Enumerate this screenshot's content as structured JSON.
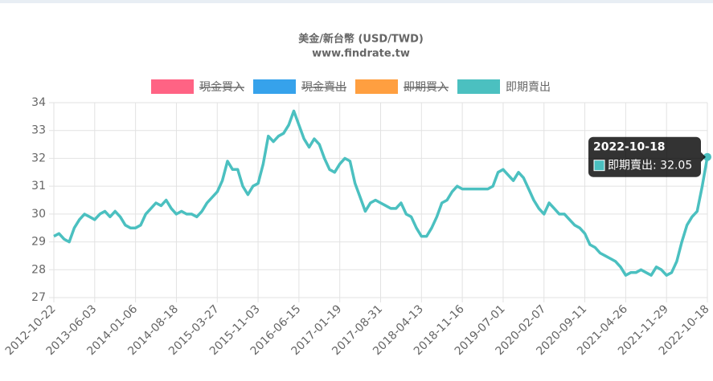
{
  "chart_data": {
    "type": "line",
    "title": [
      "美金/新台幣 (USD/TWD)",
      "www.findrate.tw"
    ],
    "categories": [
      "2012-10-22",
      null,
      null,
      null,
      null,
      null,
      null,
      null,
      "2013-06-03",
      null,
      null,
      null,
      null,
      null,
      null,
      null,
      "2014-01-06",
      null,
      null,
      null,
      null,
      null,
      null,
      null,
      "2014-08-18",
      null,
      null,
      null,
      null,
      null,
      null,
      null,
      "2015-03-27",
      null,
      null,
      null,
      null,
      null,
      null,
      null,
      "2015-11-03",
      null,
      null,
      null,
      null,
      null,
      null,
      null,
      "2016-06-15",
      null,
      null,
      null,
      null,
      null,
      null,
      null,
      "2017-01-19",
      null,
      null,
      null,
      null,
      null,
      null,
      null,
      "2017-08-31",
      null,
      null,
      null,
      null,
      null,
      null,
      null,
      "2018-04-13",
      null,
      null,
      null,
      null,
      null,
      null,
      null,
      "2018-11-16",
      null,
      null,
      null,
      null,
      null,
      null,
      null,
      "2019-07-01",
      null,
      null,
      null,
      null,
      null,
      null,
      null,
      "2020-02-07",
      null,
      null,
      null,
      null,
      null,
      null,
      null,
      "2020-09-11",
      null,
      null,
      null,
      null,
      null,
      null,
      null,
      "2021-04-26",
      null,
      null,
      null,
      null,
      null,
      null,
      null,
      "2021-11-29",
      null,
      null,
      null,
      null,
      null,
      null,
      null,
      "2022-10-18"
    ],
    "series": [
      {
        "name": "現金買入",
        "color": "#ff6384",
        "hidden": true
      },
      {
        "name": "現金賣出",
        "color": "#36a2eb",
        "hidden": true
      },
      {
        "name": "即期買入",
        "color": "#ff9f40",
        "hidden": true
      },
      {
        "name": "即期賣出",
        "color": "#4bc0c0",
        "hidden": false,
        "values": [
          29.2,
          29.3,
          29.1,
          29.0,
          29.5,
          29.8,
          30.0,
          29.9,
          29.8,
          30.0,
          30.1,
          29.9,
          30.1,
          29.9,
          29.6,
          29.5,
          29.5,
          29.6,
          30.0,
          30.2,
          30.4,
          30.3,
          30.5,
          30.2,
          30.0,
          30.1,
          30.0,
          30.0,
          29.9,
          30.1,
          30.4,
          30.6,
          30.8,
          31.2,
          31.9,
          31.6,
          31.6,
          31.0,
          30.7,
          31.0,
          31.1,
          31.8,
          32.8,
          32.6,
          32.8,
          32.9,
          33.2,
          33.7,
          33.2,
          32.7,
          32.4,
          32.7,
          32.5,
          32.0,
          31.6,
          31.5,
          31.8,
          32.0,
          31.9,
          31.1,
          30.6,
          30.1,
          30.4,
          30.5,
          30.4,
          30.3,
          30.2,
          30.2,
          30.4,
          30.0,
          29.9,
          29.5,
          29.2,
          29.2,
          29.5,
          29.9,
          30.4,
          30.5,
          30.8,
          31.0,
          30.9,
          30.9,
          30.9,
          30.9,
          30.9,
          30.9,
          31.0,
          31.5,
          31.6,
          31.4,
          31.2,
          31.5,
          31.3,
          30.9,
          30.5,
          30.2,
          30.0,
          30.4,
          30.2,
          30.0,
          30.0,
          29.8,
          29.6,
          29.5,
          29.3,
          28.9,
          28.8,
          28.6,
          28.5,
          28.4,
          28.3,
          28.1,
          27.8,
          27.9,
          27.9,
          28.0,
          27.9,
          27.8,
          28.1,
          28.0,
          27.8,
          27.9,
          28.3,
          29.0,
          29.6,
          29.9,
          30.1,
          31.0,
          32.05
        ]
      }
    ],
    "ylim": [
      27,
      34
    ],
    "yticks": [
      27,
      28,
      29,
      30,
      31,
      32,
      33,
      34
    ],
    "grid": true,
    "tooltip": {
      "title": "2022-10-18",
      "series": 3,
      "index": 128
    }
  }
}
